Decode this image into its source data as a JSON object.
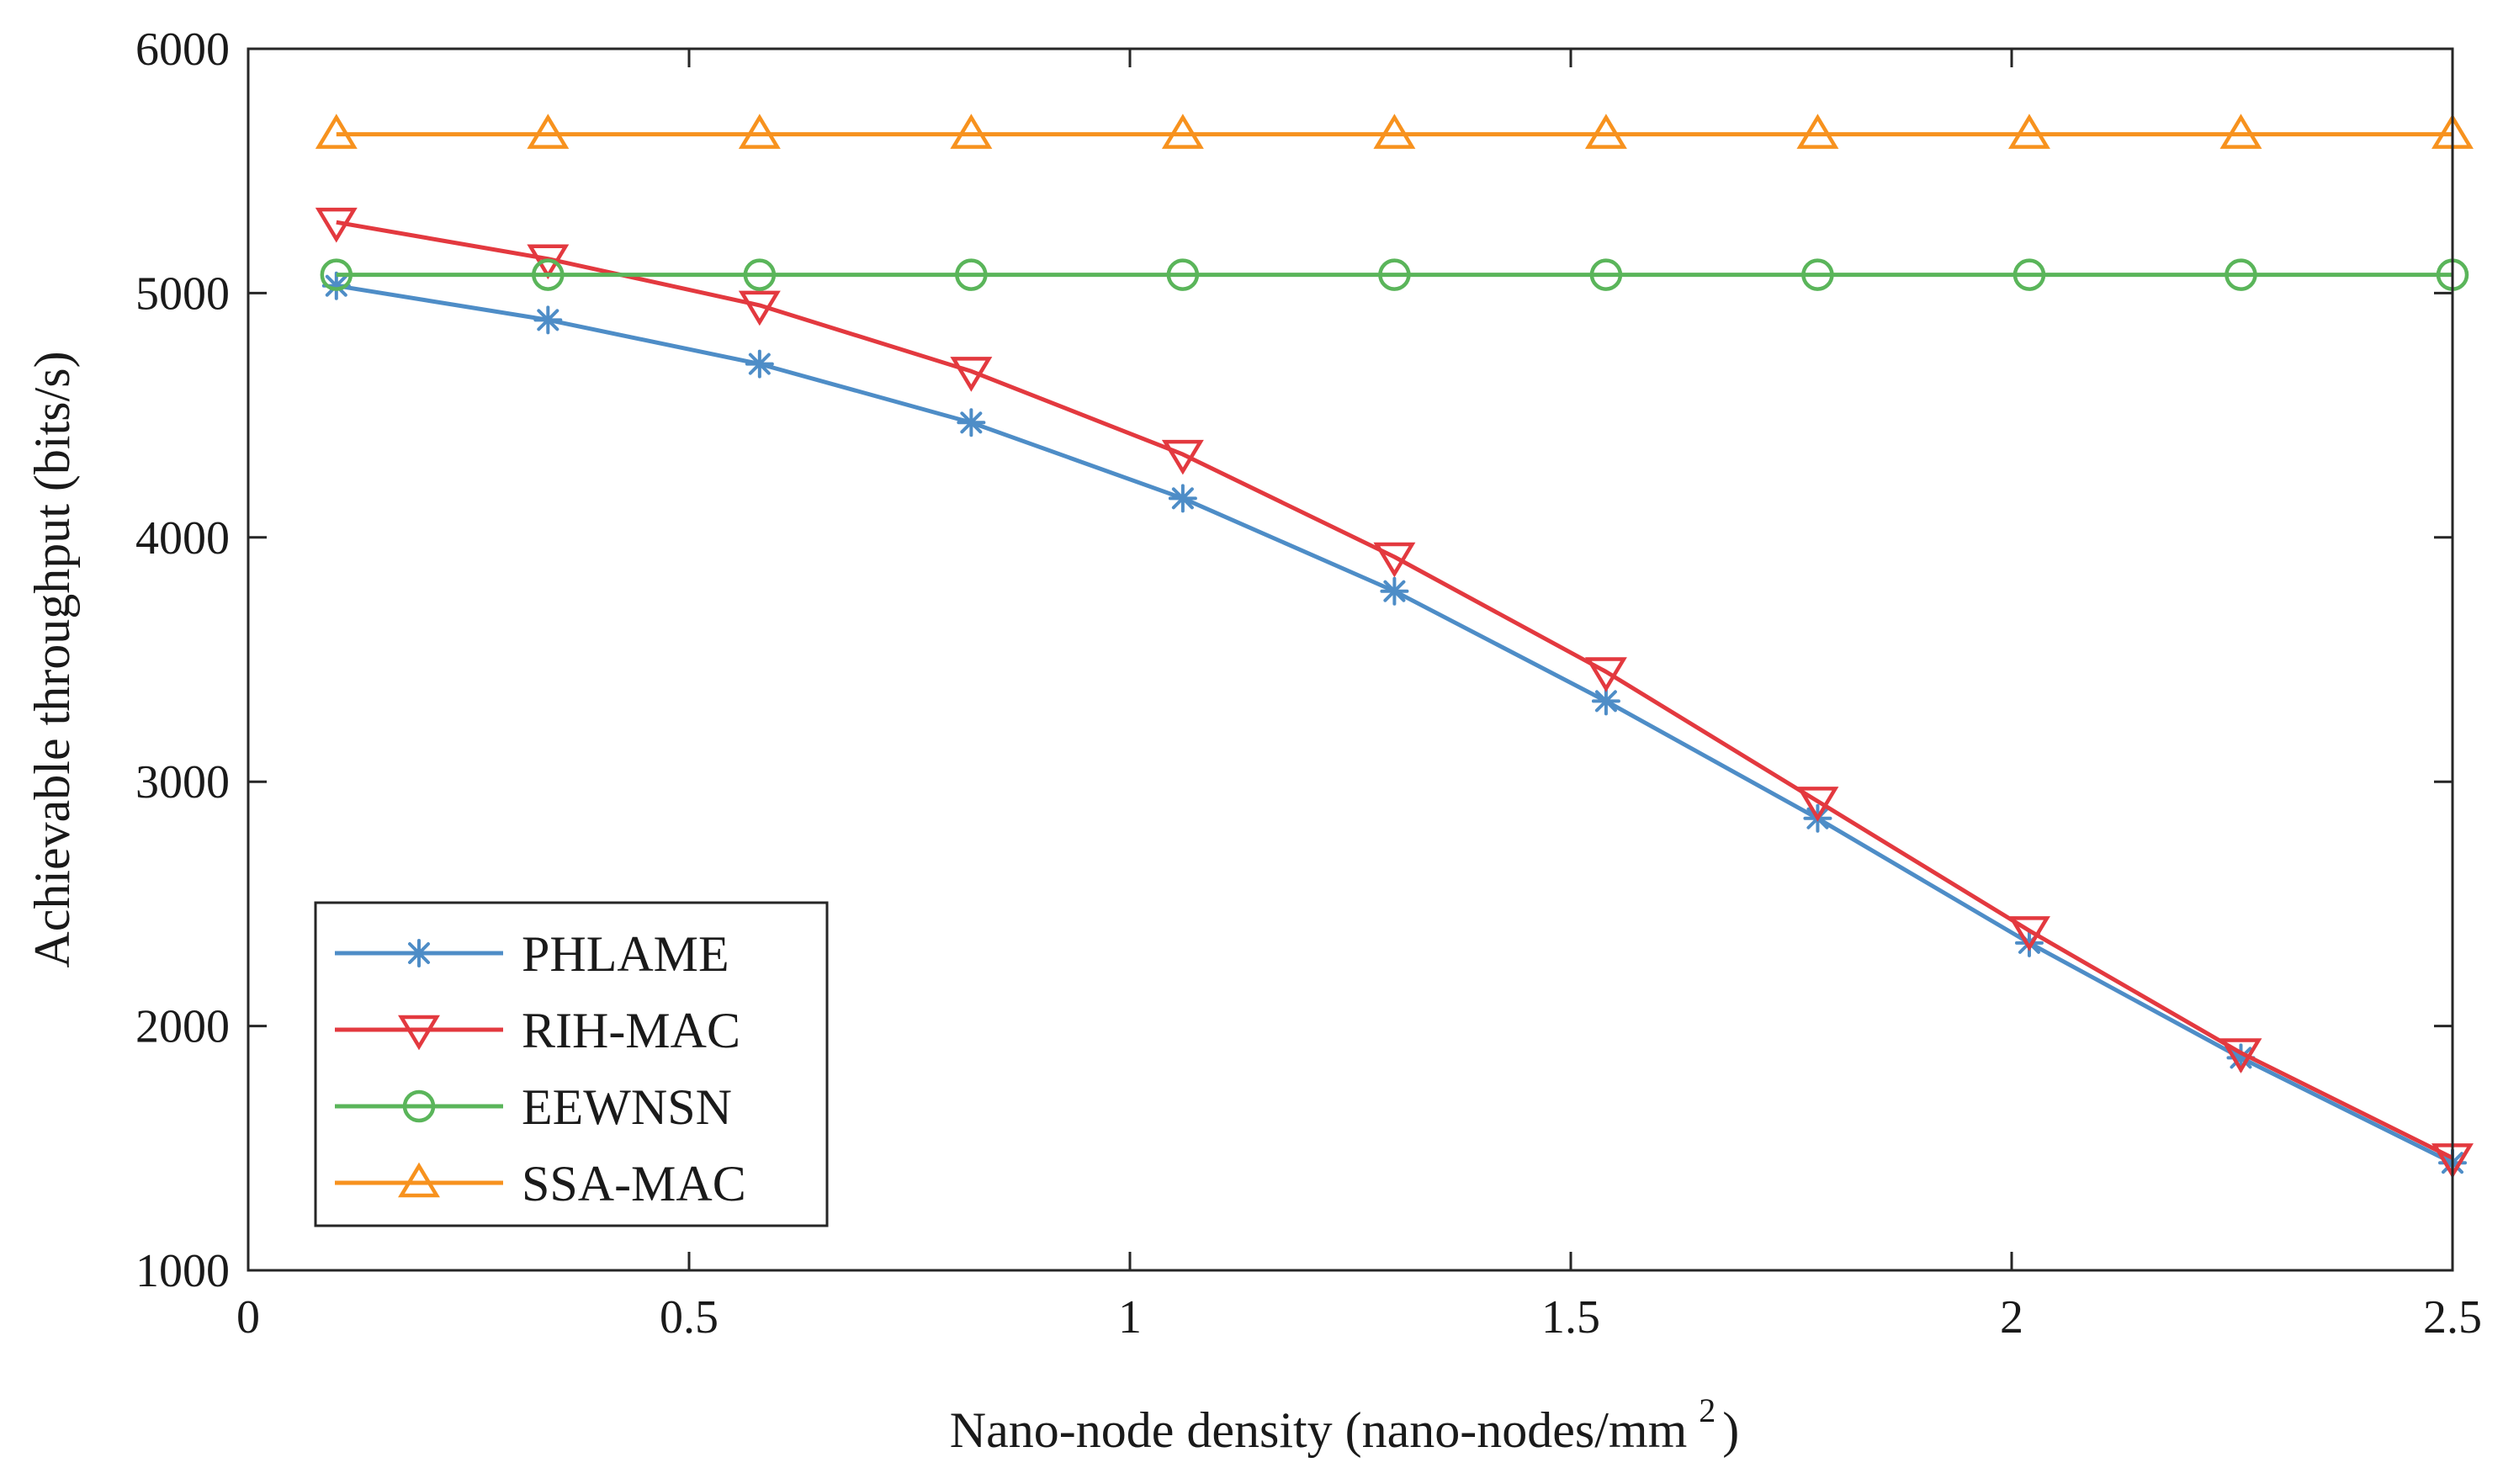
{
  "chart_data": {
    "type": "line",
    "title": "",
    "xlabel": "Nano-node density (nano-nodes/mm",
    "xlabel_superscript": "2",
    "xlabel_close": ")",
    "ylabel": "Achievable throughput (bits/s)",
    "xlim": [
      0,
      2.5
    ],
    "ylim": [
      1000,
      6000
    ],
    "xticks": [
      0,
      0.5,
      1,
      1.5,
      2,
      2.5
    ],
    "xtick_labels": [
      "0",
      "0.5",
      "1",
      "1.5",
      "2",
      "2.5"
    ],
    "yticks": [
      1000,
      2000,
      3000,
      4000,
      5000,
      6000
    ],
    "ytick_labels": [
      "1000",
      "2000",
      "3000",
      "4000",
      "5000",
      "6000"
    ],
    "grid": false,
    "legend_position": "bottom-left",
    "x": [
      0.1,
      0.34,
      0.58,
      0.82,
      1.06,
      1.3,
      1.54,
      1.78,
      2.02,
      2.26,
      2.5
    ],
    "series": [
      {
        "name": "PHLAME",
        "color": "#4e8dc7",
        "marker": "asterisk",
        "values": [
          5030,
          4890,
          4710,
          4470,
          4160,
          3780,
          3330,
          2850,
          2340,
          1870,
          1440
        ]
      },
      {
        "name": "RIH-MAC",
        "color": "#e3393f",
        "marker": "triangle-down",
        "values": [
          5290,
          5140,
          4950,
          4680,
          4340,
          3920,
          3450,
          2920,
          2390,
          1890,
          1460
        ]
      },
      {
        "name": "EEWNSN",
        "color": "#5ab55a",
        "marker": "circle",
        "values": [
          5075,
          5075,
          5075,
          5075,
          5075,
          5075,
          5075,
          5075,
          5075,
          5075,
          5075
        ]
      },
      {
        "name": "SSA-MAC",
        "color": "#f7921e",
        "marker": "triangle-up",
        "values": [
          5650,
          5650,
          5650,
          5650,
          5650,
          5650,
          5650,
          5650,
          5650,
          5650,
          5650
        ]
      }
    ]
  }
}
